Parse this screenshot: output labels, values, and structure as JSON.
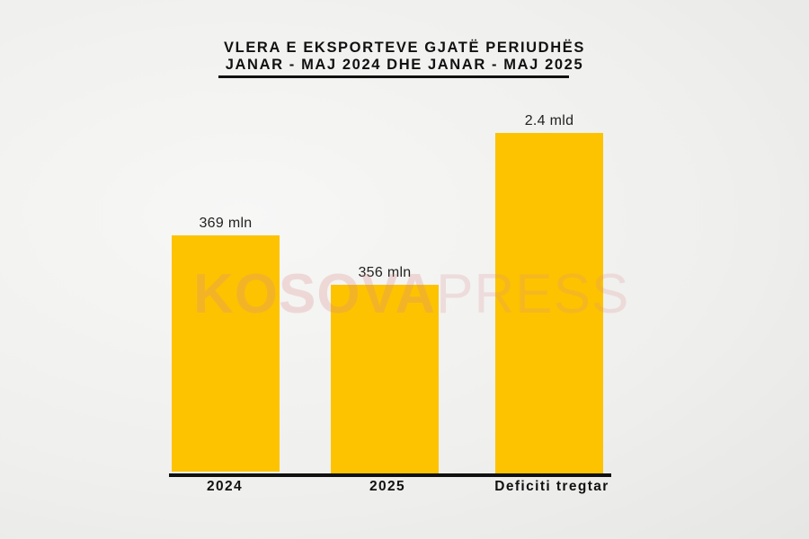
{
  "chart_data": {
    "type": "bar",
    "title": "VLERA E EKSPORTEVE GJATË PERIUDHËS",
    "subtitle": "JANAR - MAJ 2024 DHE JANAR - MAJ 2025",
    "categories": [
      "2024",
      "2025",
      "Deficiti tregtar"
    ],
    "values": [
      369,
      356,
      2400
    ],
    "unit": "mln EUR",
    "data_labels": [
      "369 mln",
      "356 mln",
      "2.4 mld"
    ],
    "bar_color": "#fdc300",
    "xlabel": "",
    "ylabel": "",
    "grid": false
  },
  "watermark": {
    "bold": "KOSOVA",
    "light": "PRESS"
  }
}
